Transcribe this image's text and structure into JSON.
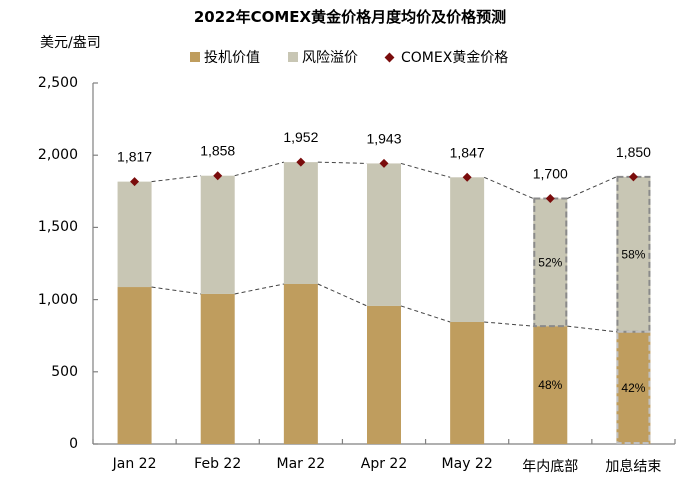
{
  "chart_data": {
    "type": "bar",
    "title": "2022年COMEX黄金价格月度均价及价格预测",
    "ylabel": "美元/盎司",
    "xlabel": "",
    "ylim": [
      0,
      2500
    ],
    "yticks": [
      "0",
      "500",
      "1,000",
      "1,500",
      "2,000",
      "2,500"
    ],
    "categories": [
      "Jan 22",
      "Feb 22",
      "Mar 22",
      "Apr 22",
      "May 22",
      "年内底部",
      "加息结束"
    ],
    "stacked": true,
    "series": [
      {
        "name": "投机价值",
        "type": "bar",
        "color": "#bf9d5e",
        "values": [
          1087,
          1039,
          1108,
          956,
          845,
          816,
          777
        ]
      },
      {
        "name": "风险溢价",
        "type": "bar",
        "color": "#c8c6b4",
        "values": [
          730,
          819,
          844,
          987,
          1002,
          884,
          1073
        ]
      },
      {
        "name": "COMEX黄金价格",
        "type": "scatter",
        "marker": "diamond",
        "color": "#7a0c0c",
        "values": [
          1817,
          1858,
          1952,
          1943,
          1847,
          1700,
          1850
        ]
      }
    ],
    "data_labels": [
      "1,817",
      "1,858",
      "1,952",
      "1,943",
      "1,847",
      "1,700",
      "1,850"
    ],
    "annotations": [
      {
        "category": "年内底部",
        "series": "风险溢价",
        "text": "52%"
      },
      {
        "category": "年内底部",
        "series": "投机价值",
        "text": "48%"
      },
      {
        "category": "加息结束",
        "series": "风险溢价",
        "text": "58%"
      },
      {
        "category": "加息结束",
        "series": "投机价值",
        "text": "42%"
      }
    ],
    "forecast_categories": [
      "年内底部",
      "加息结束"
    ],
    "legend_position": "top",
    "grid": false
  },
  "legend": {
    "items": [
      {
        "label": "投机价值",
        "color": "#bf9d5e"
      },
      {
        "label": "风险溢价",
        "color": "#c8c6b4"
      },
      {
        "label": "COMEX黄金价格",
        "color": "#7a0c0c"
      }
    ]
  }
}
